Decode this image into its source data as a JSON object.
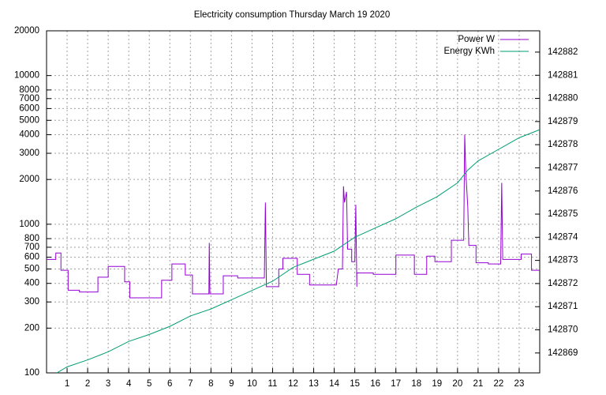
{
  "chart_data": {
    "type": "line",
    "title": "Electricity consumption Thursday March 19 2020",
    "xlim": [
      0,
      24
    ],
    "xticks": [
      1,
      2,
      3,
      4,
      5,
      6,
      7,
      8,
      9,
      10,
      11,
      12,
      13,
      14,
      15,
      16,
      17,
      18,
      19,
      20,
      21,
      22,
      23
    ],
    "ylim": [
      100,
      20000
    ],
    "yscale": "log",
    "yticks": [
      100,
      200,
      300,
      400,
      500,
      600,
      700,
      800,
      1000,
      2000,
      3000,
      4000,
      5000,
      6000,
      7000,
      8000,
      10000,
      20000
    ],
    "y2lim": [
      142868.14,
      142882.92
    ],
    "y2ticks": [
      142869,
      142870,
      142871,
      142872,
      142873,
      142874,
      142875,
      142876,
      142877,
      142878,
      142879,
      142880,
      142881,
      142882
    ],
    "grid": true,
    "legend": "top-right",
    "series": [
      {
        "name": "Power W",
        "color": "#9400d3",
        "x": [
          0,
          0.45,
          0.45,
          0.7,
          0.7,
          1.05,
          1.05,
          1.6,
          1.6,
          2.5,
          2.5,
          3,
          3,
          3.8,
          3.8,
          4.05,
          4.05,
          5.6,
          5.6,
          6.1,
          6.1,
          6.75,
          6.75,
          7.1,
          7.1,
          7.9,
          7.92,
          7.95,
          8.6,
          8.6,
          9.3,
          9.3,
          10.6,
          10.65,
          10.7,
          11.3,
          11.3,
          11.5,
          11.5,
          12.2,
          12.2,
          12.8,
          12.8,
          14.1,
          14.2,
          14.4,
          14.45,
          14.5,
          14.6,
          14.65,
          14.85,
          14.85,
          15.0,
          15.05,
          15.1,
          15.1,
          15.9,
          15.9,
          17.0,
          17.0,
          17.9,
          17.9,
          18.5,
          18.5,
          18.9,
          18.9,
          19.7,
          19.7,
          20.3,
          20.35,
          20.4,
          20.5,
          20.55,
          20.9,
          20.9,
          21.5,
          21.5,
          22.1,
          22.15,
          22.2,
          23.1,
          23.1,
          23.6,
          23.6,
          24
        ],
        "values": [
          580,
          580,
          640,
          640,
          490,
          490,
          360,
          360,
          350,
          350,
          440,
          440,
          520,
          520,
          410,
          410,
          320,
          320,
          420,
          420,
          540,
          540,
          455,
          455,
          340,
          340,
          750,
          340,
          340,
          450,
          450,
          435,
          435,
          1400,
          380,
          380,
          500,
          500,
          590,
          590,
          460,
          460,
          390,
          390,
          500,
          500,
          1800,
          1400,
          1650,
          680,
          680,
          560,
          560,
          1350,
          380,
          470,
          470,
          460,
          460,
          620,
          620,
          460,
          460,
          610,
          610,
          560,
          560,
          780,
          780,
          4000,
          2300,
          1300,
          720,
          720,
          550,
          550,
          540,
          540,
          1900,
          580,
          580,
          630,
          630,
          490,
          490
        ]
      },
      {
        "name": "Energy KWh",
        "color": "#009e73",
        "axis": "y2",
        "x": [
          0.5,
          1,
          2,
          3,
          4,
          5,
          6,
          7,
          8,
          9,
          10,
          11,
          12,
          13,
          14,
          15,
          16,
          17,
          18,
          19,
          20,
          20.5,
          21,
          22,
          23,
          24
        ],
        "values": [
          142868.14,
          142868.4,
          142868.7,
          142869.05,
          142869.5,
          142869.8,
          142870.15,
          142870.6,
          142870.9,
          142871.3,
          142871.7,
          142872.1,
          142872.7,
          142873.05,
          142873.4,
          142874.0,
          142874.4,
          142874.8,
          142875.3,
          142875.75,
          142876.35,
          142876.9,
          142877.3,
          142877.8,
          142878.3,
          142878.65
        ]
      }
    ]
  }
}
